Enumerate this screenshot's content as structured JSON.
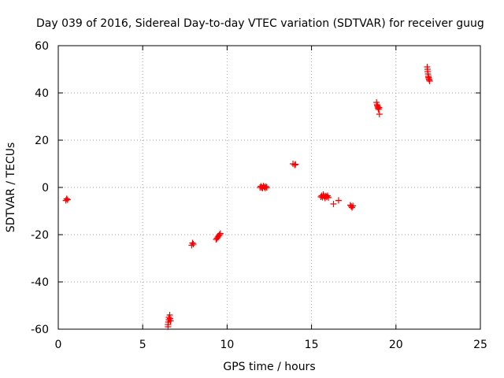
{
  "chart_data": {
    "type": "scatter",
    "title": "Day 039 of 2016, Sidereal Day-to-day VTEC variation (SDTVAR) for receiver guug",
    "xlabel": "GPS time / hours",
    "ylabel": "SDTVAR / TECUs",
    "xlim": [
      0,
      25
    ],
    "ylim": [
      -60,
      60
    ],
    "x_ticks": [
      0,
      5,
      10,
      15,
      20,
      25
    ],
    "y_ticks": [
      -60,
      -40,
      -20,
      0,
      20,
      40,
      60
    ],
    "x_tick_labels": [
      "0",
      "5",
      "10",
      "15",
      "20",
      "25"
    ],
    "y_tick_labels": [
      "-60",
      "-40",
      "-20",
      "0",
      "20",
      "40",
      "60"
    ],
    "grid": true,
    "marker": "plus",
    "series_color": "#ff0000",
    "points": [
      {
        "x": 0.45,
        "y": -5.5
      },
      {
        "x": 0.5,
        "y": -4.8
      },
      {
        "x": 0.55,
        "y": -5.2
      },
      {
        "x": 6.5,
        "y": -59
      },
      {
        "x": 6.5,
        "y": -58
      },
      {
        "x": 6.52,
        "y": -57
      },
      {
        "x": 6.55,
        "y": -56
      },
      {
        "x": 6.55,
        "y": -55
      },
      {
        "x": 6.6,
        "y": -54
      },
      {
        "x": 6.62,
        "y": -55.5
      },
      {
        "x": 6.65,
        "y": -56.5
      },
      {
        "x": 7.9,
        "y": -24.5
      },
      {
        "x": 7.95,
        "y": -23.5
      },
      {
        "x": 8.0,
        "y": -24.0
      },
      {
        "x": 9.35,
        "y": -22
      },
      {
        "x": 9.4,
        "y": -21.5
      },
      {
        "x": 9.45,
        "y": -21
      },
      {
        "x": 9.5,
        "y": -20.5
      },
      {
        "x": 9.55,
        "y": -20
      },
      {
        "x": 9.6,
        "y": -19.5
      },
      {
        "x": 11.95,
        "y": 0
      },
      {
        "x": 12.0,
        "y": 0.5
      },
      {
        "x": 12.05,
        "y": 0
      },
      {
        "x": 12.1,
        "y": -0.3
      },
      {
        "x": 12.15,
        "y": 0.6
      },
      {
        "x": 12.2,
        "y": 0.2
      },
      {
        "x": 12.25,
        "y": -0.2
      },
      {
        "x": 12.3,
        "y": 0.4
      },
      {
        "x": 12.35,
        "y": 0
      },
      {
        "x": 13.9,
        "y": 10
      },
      {
        "x": 14.0,
        "y": 9.5
      },
      {
        "x": 14.05,
        "y": 9.8
      },
      {
        "x": 15.55,
        "y": -4
      },
      {
        "x": 15.6,
        "y": -3.5
      },
      {
        "x": 15.65,
        "y": -4.2
      },
      {
        "x": 15.7,
        "y": -3
      },
      {
        "x": 15.75,
        "y": -3.8
      },
      {
        "x": 15.8,
        "y": -4.5
      },
      {
        "x": 15.85,
        "y": -3.6
      },
      {
        "x": 15.9,
        "y": -4
      },
      {
        "x": 15.95,
        "y": -3.5
      },
      {
        "x": 16.0,
        "y": -4.3
      },
      {
        "x": 16.3,
        "y": -7
      },
      {
        "x": 16.6,
        "y": -5.5
      },
      {
        "x": 17.3,
        "y": -7.5
      },
      {
        "x": 17.35,
        "y": -8
      },
      {
        "x": 17.4,
        "y": -8.5
      },
      {
        "x": 17.45,
        "y": -7.8
      },
      {
        "x": 18.85,
        "y": 36
      },
      {
        "x": 18.88,
        "y": 35
      },
      {
        "x": 18.9,
        "y": 34.5
      },
      {
        "x": 18.93,
        "y": 34
      },
      {
        "x": 18.95,
        "y": 33.5
      },
      {
        "x": 18.97,
        "y": 33
      },
      {
        "x": 19.0,
        "y": 33.8
      },
      {
        "x": 19.02,
        "y": 31
      },
      {
        "x": 21.85,
        "y": 51
      },
      {
        "x": 21.87,
        "y": 50
      },
      {
        "x": 21.88,
        "y": 49
      },
      {
        "x": 21.9,
        "y": 48
      },
      {
        "x": 21.92,
        "y": 47
      },
      {
        "x": 21.93,
        "y": 46.5
      },
      {
        "x": 21.95,
        "y": 46
      },
      {
        "x": 21.97,
        "y": 45.5
      },
      {
        "x": 22.0,
        "y": 45
      }
    ]
  }
}
